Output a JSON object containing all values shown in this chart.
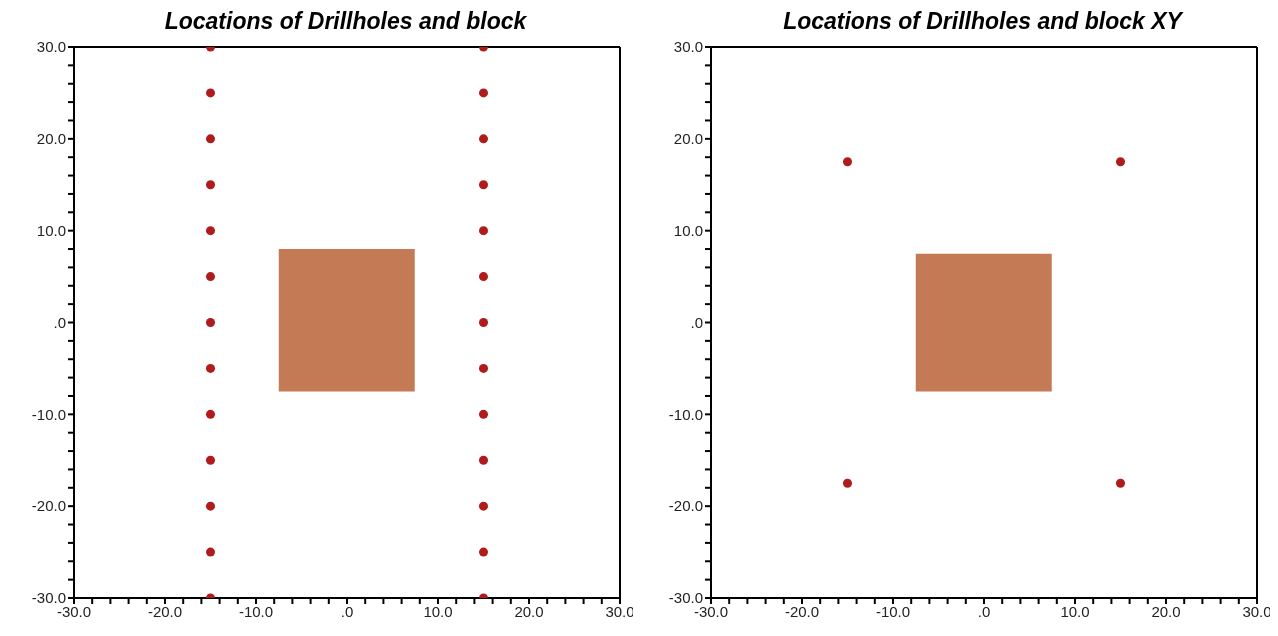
{
  "chart_data": [
    {
      "type": "scatter",
      "title": "Locations of Drillholes and block",
      "series": [
        {
          "type": "bar",
          "color": "#c47a55",
          "x": [
            0
          ],
          "base": [
            -7.5
          ],
          "values": [
            15.5
          ]
        },
        {
          "color": "#b01c1c",
          "marker": "circle",
          "x": [
            -15,
            -15,
            -15,
            -15,
            -15,
            -15,
            -15,
            -15,
            -15,
            -15,
            -15,
            -15,
            -15,
            15,
            15,
            15,
            15,
            15,
            15,
            15,
            15,
            15,
            15,
            15,
            15,
            15
          ],
          "values": [
            30,
            25,
            20,
            15,
            10,
            5,
            0,
            -5,
            -10,
            -15,
            -20,
            -25,
            -30,
            30,
            25,
            20,
            15,
            10,
            5,
            0,
            -5,
            -10,
            -15,
            -20,
            -25,
            -30
          ]
        }
      ],
      "xlim": [
        -30,
        30
      ],
      "ylim": [
        -30,
        30
      ],
      "xticks": [
        {
          "value": -30,
          "label": "-30.0"
        },
        {
          "value": -28,
          "label": null
        },
        {
          "value": -26,
          "label": null
        },
        {
          "value": -24,
          "label": null
        },
        {
          "value": -22,
          "label": null
        },
        {
          "value": -20,
          "label": "-20.0"
        },
        {
          "value": -18,
          "label": null
        },
        {
          "value": -16,
          "label": null
        },
        {
          "value": -14,
          "label": null
        },
        {
          "value": -12,
          "label": null
        },
        {
          "value": -10,
          "label": "-10.0"
        },
        {
          "value": -8,
          "label": null
        },
        {
          "value": -6,
          "label": null
        },
        {
          "value": -4,
          "label": null
        },
        {
          "value": -2,
          "label": null
        },
        {
          "value": 0,
          "label": ".0"
        },
        {
          "value": 2,
          "label": null
        },
        {
          "value": 4,
          "label": null
        },
        {
          "value": 6,
          "label": null
        },
        {
          "value": 8,
          "label": null
        },
        {
          "value": 10,
          "label": "10.0"
        },
        {
          "value": 12,
          "label": null
        },
        {
          "value": 14,
          "label": null
        },
        {
          "value": 16,
          "label": null
        },
        {
          "value": 18,
          "label": null
        },
        {
          "value": 20,
          "label": "20.0"
        },
        {
          "value": 22,
          "label": null
        },
        {
          "value": 24,
          "label": null
        },
        {
          "value": 26,
          "label": null
        },
        {
          "value": 28,
          "label": null
        },
        {
          "value": 30,
          "label": "30.0"
        }
      ],
      "yticks": [
        {
          "value": -30,
          "label": "-30.0"
        },
        {
          "value": -28,
          "label": null
        },
        {
          "value": -26,
          "label": null
        },
        {
          "value": -24,
          "label": null
        },
        {
          "value": -22,
          "label": null
        },
        {
          "value": -20,
          "label": "-20.0"
        },
        {
          "value": -18,
          "label": null
        },
        {
          "value": -16,
          "label": null
        },
        {
          "value": -14,
          "label": null
        },
        {
          "value": -12,
          "label": null
        },
        {
          "value": -10,
          "label": "-10.0"
        },
        {
          "value": -8,
          "label": null
        },
        {
          "value": -6,
          "label": null
        },
        {
          "value": -4,
          "label": null
        },
        {
          "value": -2,
          "label": null
        },
        {
          "value": 0,
          "label": ".0"
        },
        {
          "value": 2,
          "label": null
        },
        {
          "value": 4,
          "label": null
        },
        {
          "value": 6,
          "label": null
        },
        {
          "value": 8,
          "label": null
        },
        {
          "value": 10,
          "label": "10.0"
        },
        {
          "value": 12,
          "label": null
        },
        {
          "value": 14,
          "label": null
        },
        {
          "value": 16,
          "label": null
        },
        {
          "value": 18,
          "label": null
        },
        {
          "value": 20,
          "label": "20.0"
        },
        {
          "value": 22,
          "label": null
        },
        {
          "value": 24,
          "label": null
        },
        {
          "value": 26,
          "label": null
        },
        {
          "value": 28,
          "label": null
        },
        {
          "value": 30,
          "label": "30.0"
        }
      ],
      "grid": false
    },
    {
      "type": "scatter",
      "title": "Locations of Drillholes and block XY",
      "series": [
        {
          "type": "bar",
          "color": "#c47a55",
          "x": [
            0
          ],
          "base": [
            -7.5
          ],
          "values": [
            15
          ]
        },
        {
          "color": "#b01c1c",
          "marker": "circle",
          "x": [
            -15,
            15,
            -15,
            15
          ],
          "values": [
            17.5,
            17.5,
            -17.5,
            -17.5
          ]
        }
      ],
      "xlim": [
        -30,
        30
      ],
      "ylim": [
        -30,
        30
      ],
      "xticks": [
        {
          "value": -30,
          "label": "-30.0"
        },
        {
          "value": -28,
          "label": null
        },
        {
          "value": -26,
          "label": null
        },
        {
          "value": -24,
          "label": null
        },
        {
          "value": -22,
          "label": null
        },
        {
          "value": -20,
          "label": "-20.0"
        },
        {
          "value": -18,
          "label": null
        },
        {
          "value": -16,
          "label": null
        },
        {
          "value": -14,
          "label": null
        },
        {
          "value": -12,
          "label": null
        },
        {
          "value": -10,
          "label": "-10.0"
        },
        {
          "value": -8,
          "label": null
        },
        {
          "value": -6,
          "label": null
        },
        {
          "value": -4,
          "label": null
        },
        {
          "value": -2,
          "label": null
        },
        {
          "value": 0,
          "label": ".0"
        },
        {
          "value": 2,
          "label": null
        },
        {
          "value": 4,
          "label": null
        },
        {
          "value": 6,
          "label": null
        },
        {
          "value": 8,
          "label": null
        },
        {
          "value": 10,
          "label": "10.0"
        },
        {
          "value": 12,
          "label": null
        },
        {
          "value": 14,
          "label": null
        },
        {
          "value": 16,
          "label": null
        },
        {
          "value": 18,
          "label": null
        },
        {
          "value": 20,
          "label": "20.0"
        },
        {
          "value": 22,
          "label": null
        },
        {
          "value": 24,
          "label": null
        },
        {
          "value": 26,
          "label": null
        },
        {
          "value": 28,
          "label": null
        },
        {
          "value": 30,
          "label": "30.0"
        }
      ],
      "yticks": [
        {
          "value": -30,
          "label": "-30.0"
        },
        {
          "value": -28,
          "label": null
        },
        {
          "value": -26,
          "label": null
        },
        {
          "value": -24,
          "label": null
        },
        {
          "value": -22,
          "label": null
        },
        {
          "value": -20,
          "label": "-20.0"
        },
        {
          "value": -18,
          "label": null
        },
        {
          "value": -16,
          "label": null
        },
        {
          "value": -14,
          "label": null
        },
        {
          "value": -12,
          "label": null
        },
        {
          "value": -10,
          "label": "-10.0"
        },
        {
          "value": -8,
          "label": null
        },
        {
          "value": -6,
          "label": null
        },
        {
          "value": -4,
          "label": null
        },
        {
          "value": -2,
          "label": null
        },
        {
          "value": 0,
          "label": ".0"
        },
        {
          "value": 2,
          "label": null
        },
        {
          "value": 4,
          "label": null
        },
        {
          "value": 6,
          "label": null
        },
        {
          "value": 8,
          "label": null
        },
        {
          "value": 10,
          "label": "10.0"
        },
        {
          "value": 12,
          "label": null
        },
        {
          "value": 14,
          "label": null
        },
        {
          "value": 16,
          "label": null
        },
        {
          "value": 18,
          "label": null
        },
        {
          "value": 20,
          "label": "20.0"
        },
        {
          "value": 22,
          "label": null
        },
        {
          "value": 24,
          "label": null
        },
        {
          "value": 26,
          "label": null
        },
        {
          "value": 28,
          "label": null
        },
        {
          "value": 30,
          "label": "30.0"
        }
      ],
      "grid": false
    }
  ]
}
